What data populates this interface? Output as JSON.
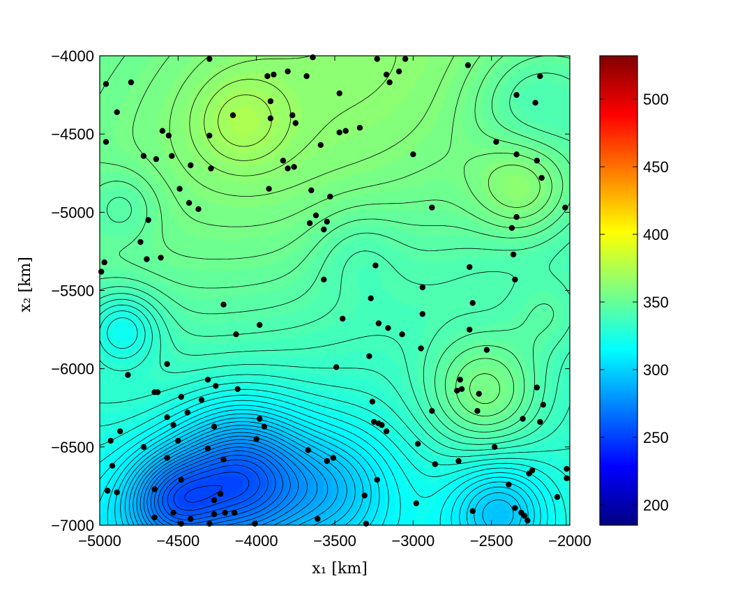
{
  "chart_data": {
    "type": "contour",
    "xlabel": "x₁ [km]",
    "ylabel": "x₂ [km]",
    "xlim": [
      -5000,
      -2000
    ],
    "ylim": [
      -7000,
      -4000
    ],
    "x_ticks": [
      "−5000",
      "−4500",
      "−4000",
      "−3500",
      "−3000",
      "−2500",
      "−2000"
    ],
    "y_ticks": [
      "−4000",
      "−4500",
      "−5000",
      "−5500",
      "−6000",
      "−6500",
      "−7000"
    ],
    "colorbar": {
      "colormap": "jet",
      "range": [
        185,
        532
      ],
      "ticks": [
        "200",
        "250",
        "300",
        "350",
        "400",
        "450",
        "500"
      ]
    },
    "contour_color": "#000000",
    "stations": [
      [
        -4960,
        -4180
      ],
      [
        -4890,
        -4360
      ],
      [
        -4960,
        -4550
      ],
      [
        -4800,
        -4170
      ],
      [
        -4300,
        -4020
      ],
      [
        -3640,
        -4010
      ],
      [
        -3230,
        -4020
      ],
      [
        -3050,
        -4020
      ],
      [
        -3930,
        -4130
      ],
      [
        -3890,
        -4120
      ],
      [
        -3800,
        -4100
      ],
      [
        -3680,
        -4130
      ],
      [
        -3170,
        -4120
      ],
      [
        -3150,
        -4170
      ],
      [
        -3090,
        -4100
      ],
      [
        -2650,
        -4060
      ],
      [
        -2190,
        -4130
      ],
      [
        -2340,
        -4250
      ],
      [
        -2220,
        -4300
      ],
      [
        -3910,
        -4290
      ],
      [
        -3470,
        -4240
      ],
      [
        -4150,
        -4380
      ],
      [
        -3910,
        -4400
      ],
      [
        -3770,
        -4380
      ],
      [
        -3750,
        -4430
      ],
      [
        -4600,
        -4480
      ],
      [
        -4560,
        -4510
      ],
      [
        -4300,
        -4510
      ],
      [
        -3470,
        -4490
      ],
      [
        -3430,
        -4480
      ],
      [
        -3340,
        -4460
      ],
      [
        -3590,
        -4570
      ],
      [
        -3000,
        -4630
      ],
      [
        -2470,
        -4550
      ],
      [
        -2340,
        -4630
      ],
      [
        -4720,
        -4640
      ],
      [
        -4640,
        -4660
      ],
      [
        -4540,
        -4640
      ],
      [
        -4420,
        -4700
      ],
      [
        -4290,
        -4720
      ],
      [
        -3830,
        -4670
      ],
      [
        -3800,
        -4720
      ],
      [
        -3760,
        -4710
      ],
      [
        -2210,
        -4670
      ],
      [
        -2180,
        -4780
      ],
      [
        -3920,
        -4850
      ],
      [
        -4490,
        -4850
      ],
      [
        -3650,
        -4860
      ],
      [
        -3530,
        -4900
      ],
      [
        -4430,
        -4940
      ],
      [
        -4370,
        -4980
      ],
      [
        -2880,
        -4970
      ],
      [
        -2030,
        -4970
      ],
      [
        -4690,
        -5050
      ],
      [
        -3620,
        -5020
      ],
      [
        -3660,
        -5070
      ],
      [
        -3550,
        -5060
      ],
      [
        -3570,
        -5110
      ],
      [
        -2340,
        -5030
      ],
      [
        -2370,
        -5100
      ],
      [
        -4740,
        -5190
      ],
      [
        -4610,
        -5290
      ],
      [
        -4700,
        -5300
      ],
      [
        -4970,
        -5320
      ],
      [
        -4990,
        -5380
      ],
      [
        -3240,
        -5340
      ],
      [
        -2640,
        -5350
      ],
      [
        -2360,
        -5270
      ],
      [
        -3570,
        -5430
      ],
      [
        -2350,
        -5430
      ],
      [
        -2940,
        -5480
      ],
      [
        -4210,
        -5590
      ],
      [
        -3270,
        -5550
      ],
      [
        -3450,
        -5680
      ],
      [
        -2620,
        -5580
      ],
      [
        -3220,
        -5710
      ],
      [
        -3160,
        -5740
      ],
      [
        -3070,
        -5780
      ],
      [
        -2940,
        -5650
      ],
      [
        -2640,
        -5750
      ],
      [
        -3980,
        -5720
      ],
      [
        -4130,
        -5780
      ],
      [
        -4570,
        -5970
      ],
      [
        -4820,
        -6040
      ],
      [
        -3490,
        -5990
      ],
      [
        -3280,
        -5920
      ],
      [
        -2950,
        -5870
      ],
      [
        -2530,
        -5880
      ],
      [
        -4310,
        -6070
      ],
      [
        -4260,
        -6110
      ],
      [
        -4120,
        -6130
      ],
      [
        -2700,
        -6070
      ],
      [
        -2720,
        -6140
      ],
      [
        -2690,
        -6130
      ],
      [
        -2580,
        -6160
      ],
      [
        -2210,
        -6120
      ],
      [
        -4630,
        -6150
      ],
      [
        -4650,
        -6150
      ],
      [
        -4480,
        -6180
      ],
      [
        -4350,
        -6200
      ],
      [
        -4440,
        -6280
      ],
      [
        -3260,
        -6210
      ],
      [
        -2590,
        -6270
      ],
      [
        -2170,
        -6230
      ],
      [
        -4570,
        -6310
      ],
      [
        -4530,
        -6360
      ],
      [
        -3980,
        -6320
      ],
      [
        -3950,
        -6370
      ],
      [
        -3250,
        -6340
      ],
      [
        -3220,
        -6350
      ],
      [
        -3200,
        -6360
      ],
      [
        -3170,
        -6400
      ],
      [
        -2880,
        -6270
      ],
      [
        -2300,
        -6320
      ],
      [
        -2190,
        -6340
      ],
      [
        -4870,
        -6400
      ],
      [
        -4930,
        -6460
      ],
      [
        -4500,
        -6460
      ],
      [
        -4270,
        -6370
      ],
      [
        -4000,
        -6450
      ],
      [
        -4720,
        -6500
      ],
      [
        -4310,
        -6510
      ],
      [
        -2970,
        -6480
      ],
      [
        -2480,
        -6500
      ],
      [
        -4920,
        -6620
      ],
      [
        -4570,
        -6570
      ],
      [
        -4210,
        -6580
      ],
      [
        -3670,
        -6520
      ],
      [
        -3550,
        -6590
      ],
      [
        -3510,
        -6570
      ],
      [
        -2860,
        -6610
      ],
      [
        -2710,
        -6590
      ],
      [
        -4480,
        -6710
      ],
      [
        -3230,
        -6710
      ],
      [
        -2390,
        -6740
      ],
      [
        -2240,
        -6650
      ],
      [
        -2260,
        -6670
      ],
      [
        -2020,
        -6640
      ],
      [
        -2020,
        -6700
      ],
      [
        -4950,
        -6780
      ],
      [
        -4890,
        -6790
      ],
      [
        -4650,
        -6770
      ],
      [
        -4270,
        -6840
      ],
      [
        -4230,
        -6800
      ],
      [
        -3310,
        -6810
      ],
      [
        -2980,
        -6860
      ],
      [
        -2620,
        -6910
      ],
      [
        -2350,
        -6890
      ],
      [
        -2310,
        -6920
      ],
      [
        -2290,
        -6940
      ],
      [
        -2270,
        -6970
      ],
      [
        -2080,
        -6820
      ],
      [
        -4650,
        -6950
      ],
      [
        -4530,
        -6920
      ],
      [
        -4480,
        -6990
      ],
      [
        -4420,
        -6960
      ],
      [
        -4300,
        -6990
      ],
      [
        -4270,
        -6930
      ],
      [
        -4200,
        -6920
      ],
      [
        -4140,
        -6920
      ],
      [
        -4010,
        -6990
      ],
      [
        -3610,
        -6960
      ],
      [
        -3300,
        -6990
      ]
    ]
  }
}
